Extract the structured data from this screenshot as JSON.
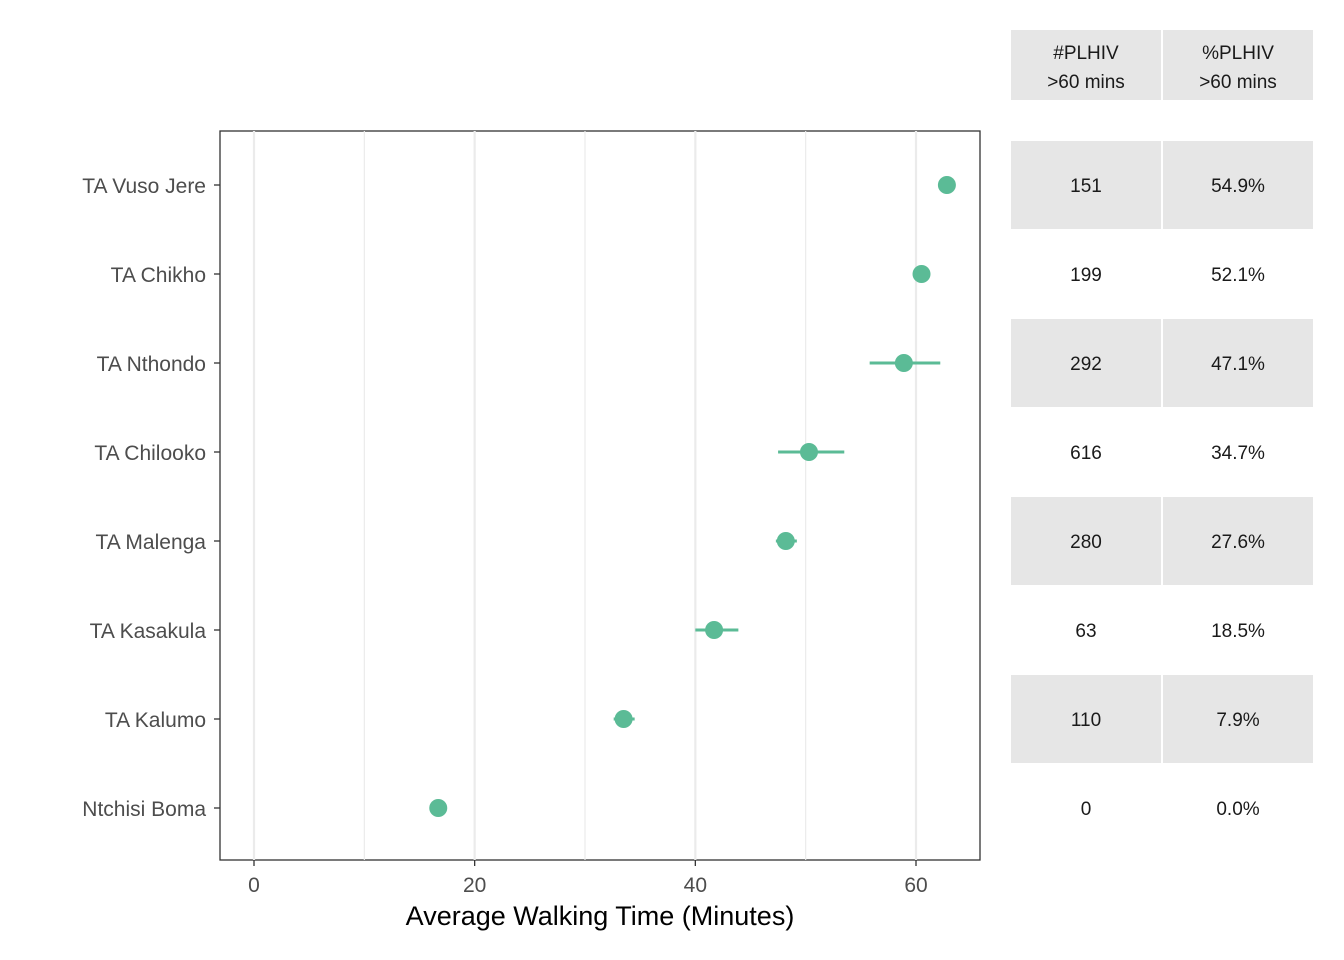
{
  "chart_data": {
    "type": "scatter",
    "title": "",
    "xlabel": "Average Walking Time (Minutes)",
    "ylabel": "",
    "xlim": [
      -3,
      66
    ],
    "x_ticks": [
      0,
      20,
      40,
      60
    ],
    "grid": true,
    "categories": [
      "TA Vuso Jere",
      "TA Chikho",
      "TA Nthondo",
      "TA Chilooko",
      "TA Malenga",
      "TA Kasakula",
      "TA Kalumo",
      "Ntchisi Boma"
    ],
    "values": [
      62.8,
      60.5,
      58.9,
      50.3,
      48.2,
      41.7,
      33.5,
      16.7
    ],
    "ci_low": [
      62.8,
      60.5,
      55.8,
      47.5,
      47.3,
      40.0,
      32.6,
      16.7
    ],
    "ci_high": [
      62.8,
      60.5,
      62.2,
      53.5,
      49.2,
      43.9,
      34.5,
      16.7
    ],
    "point_color": "#5bbb96",
    "table": {
      "headers": [
        {
          "line1": "#PLHIV",
          "line2": ">60 mins"
        },
        {
          "line1": "%PLHIV",
          "line2": ">60 mins"
        }
      ],
      "plhiv_count": [
        "151",
        "199",
        "292",
        "616",
        "280",
        "63",
        "110",
        "0"
      ],
      "plhiv_percent": [
        "54.9%",
        "52.1%",
        "47.1%",
        "34.7%",
        "27.6%",
        "18.5%",
        "7.9%",
        "0.0%"
      ],
      "shade_color": "#e6e6e6"
    }
  }
}
